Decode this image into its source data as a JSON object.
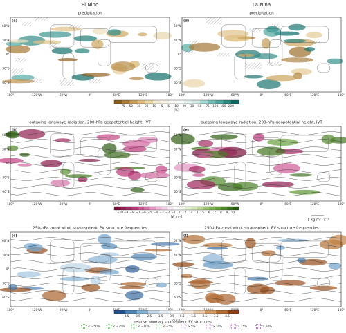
{
  "columns": [
    "El Nino",
    "La Nina"
  ],
  "panels": [
    {
      "label": "(a)",
      "title": "precipitation"
    },
    {
      "label": "(d)",
      "title": "precipitation"
    },
    {
      "label": "(b)",
      "title": "outgoing longwave radiation, 200-hPa geopotential height, IVT"
    },
    {
      "label": "(e)",
      "title": "outgoing longwave radiation, 200-hPa geopotential height, IVT"
    },
    {
      "label": "(c)",
      "title": "250-hPa zonal wind, stratospheric PV structure frequencies"
    },
    {
      "label": "(f)",
      "title": "250-hPa zonal wind, stratospheric PV structure frequencies"
    }
  ],
  "lat_labels": [
    "60°N",
    "30°N",
    "0°",
    "30°S",
    "60°S"
  ],
  "lon_labels": [
    "180°",
    "120°W",
    "60°W",
    "0°",
    "60°E",
    "120°E",
    "180°"
  ],
  "colorbars": [
    {
      "ticks": [
        "−75",
        "−50",
        "−30",
        "−20",
        "−10",
        "−5",
        "5",
        "10",
        "20",
        "30",
        "50",
        "75",
        "100",
        "150",
        "200"
      ],
      "unit": "[%]"
    },
    {
      "ticks": [
        "−10",
        "−9",
        "−8",
        "−7",
        "−6",
        "−5",
        "−4",
        "−3",
        "−2",
        "−1",
        "1",
        "2",
        "3",
        "4",
        "5",
        "6",
        "7",
        "8",
        "9",
        "10"
      ],
      "unit": "[W m⁻²]"
    },
    {
      "ticks": [
        "−4.5",
        "−3.5",
        "−2.5",
        "−1.5",
        "−0.5",
        "0.5",
        "1.5",
        "2.5",
        "3.5",
        "4.5"
      ],
      "unit": "[m s⁻¹]"
    }
  ],
  "ivt_key": "5 kg m⁻¹ s⁻¹",
  "legend": {
    "title": "relative anomaly stratospheric PV structures",
    "items": [
      "< −50%",
      "< −25%",
      "< −10%",
      "< −5%",
      "> 5%",
      "> 10%",
      "> 25%",
      "> 50%"
    ]
  }
}
